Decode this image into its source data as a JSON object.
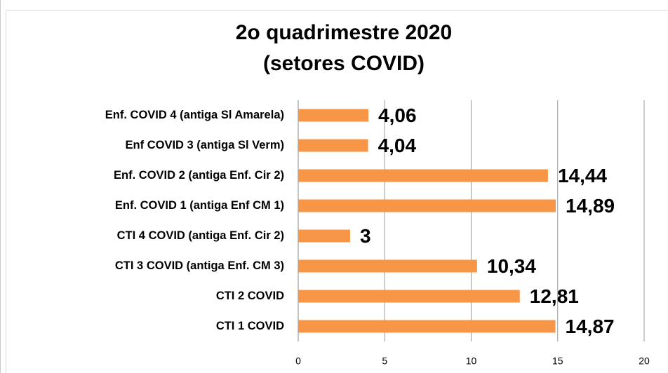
{
  "chart_data": {
    "type": "bar",
    "orientation": "horizontal",
    "title": [
      "2o quadrimestre 2020",
      "(setores COVID)"
    ],
    "categories": [
      "Enf. COVID 4 (antiga Sl Amarela)",
      "Enf COVID 3 (antiga Sl Verm)",
      "Enf. COVID 2 (antiga Enf. Cir 2)",
      "Enf.  COVID 1 (antiga Enf CM 1)",
      "CTI 4 COVID (antiga Enf. Cir 2)",
      "CTI 3 COVID (antiga Enf. CM 3)",
      "CTI 2 COVID",
      "CTI 1 COVID"
    ],
    "values": [
      4.06,
      4.04,
      14.44,
      14.89,
      3,
      10.34,
      12.81,
      14.87
    ],
    "value_labels": [
      "4,06",
      "4,04",
      "14,44",
      "14,89",
      "3",
      "10,34",
      "12,81",
      "14,87"
    ],
    "color": "#f79646",
    "xlim": [
      0,
      20
    ],
    "xticks": [
      0,
      5,
      10,
      15,
      20
    ],
    "grid": true
  }
}
